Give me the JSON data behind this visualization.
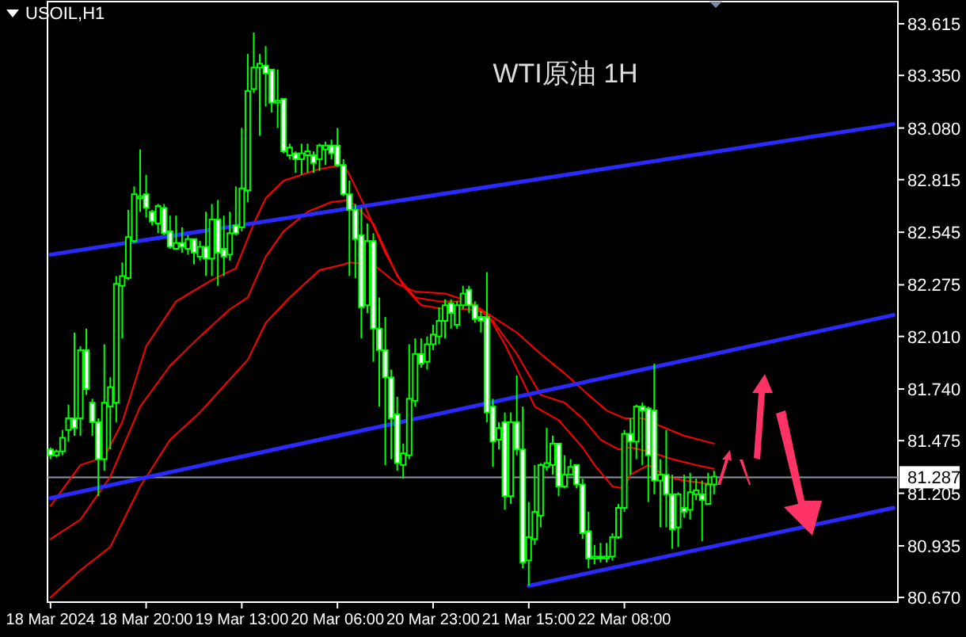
{
  "chart_data": {
    "type": "candlestick",
    "title": "WTI原油 1H",
    "subtitle": "USOIL,H1",
    "color": "#00ff00",
    "categories": [
      "18 Mar 2024",
      null,
      null,
      null,
      null,
      null,
      null,
      null,
      null,
      null,
      null,
      null,
      null,
      null,
      null,
      null,
      "18 Mar 20:00",
      null,
      null,
      null,
      null,
      null,
      null,
      null,
      null,
      null,
      null,
      null,
      null,
      null,
      null,
      null,
      "19 Mar 13:00",
      null,
      null,
      null,
      null,
      null,
      null,
      null,
      null,
      null,
      null,
      null,
      null,
      null,
      null,
      null,
      "20 Mar 06:00",
      null,
      null,
      null,
      null,
      null,
      null,
      null,
      null,
      null,
      null,
      null,
      null,
      null,
      null,
      null,
      "20 Mar 23:00",
      null,
      null,
      null,
      null,
      null,
      null,
      null,
      null,
      null,
      null,
      null,
      null,
      null,
      null,
      null,
      "21 Mar 15:00",
      null,
      null,
      null,
      null,
      null,
      null,
      null,
      null,
      null,
      null,
      null,
      null,
      null,
      null,
      null,
      "22 Mar 08:00",
      null,
      null,
      null,
      null,
      null,
      null,
      null,
      null,
      null,
      null,
      null,
      null,
      null,
      null,
      null,
      null,
      null,
      null,
      null,
      null,
      null,
      null,
      null,
      null,
      null,
      null,
      null,
      null,
      null,
      null,
      null,
      null,
      null,
      null,
      null,
      null,
      null,
      null,
      null,
      null,
      null,
      null,
      null,
      null,
      null
    ],
    "ohlc": [
      [
        81.43,
        81.44,
        81.38,
        81.4
      ],
      [
        81.4,
        81.43,
        81.39,
        81.42
      ],
      [
        81.42,
        81.53,
        81.4,
        81.49
      ],
      [
        81.53,
        81.66,
        81.47,
        81.59
      ],
      [
        81.59,
        82.03,
        81.5,
        81.54
      ],
      [
        81.59,
        81.96,
        81.5,
        81.94
      ],
      [
        81.94,
        82.05,
        81.71,
        81.74
      ],
      [
        81.67,
        81.69,
        81.5,
        81.57
      ],
      [
        81.57,
        81.59,
        81.19,
        81.38
      ],
      [
        81.38,
        81.97,
        81.32,
        81.67
      ],
      [
        81.65,
        81.8,
        81.43,
        81.75
      ],
      [
        81.67,
        82.32,
        81.57,
        82.28
      ],
      [
        82.27,
        82.39,
        82.0,
        82.32
      ],
      [
        82.31,
        82.66,
        82.3,
        82.52
      ],
      [
        82.5,
        82.78,
        82.49,
        82.74
      ],
      [
        82.72,
        82.97,
        82.65,
        82.73
      ],
      [
        82.74,
        82.84,
        82.62,
        82.67
      ],
      [
        82.65,
        82.66,
        82.58,
        82.6
      ],
      [
        82.59,
        82.69,
        82.54,
        82.68
      ],
      [
        82.67,
        82.69,
        82.53,
        82.54
      ],
      [
        82.55,
        82.63,
        82.46,
        82.47
      ],
      [
        82.46,
        82.63,
        82.46,
        82.49
      ],
      [
        82.49,
        82.57,
        82.44,
        82.47
      ],
      [
        82.46,
        82.53,
        82.43,
        82.51
      ],
      [
        82.51,
        82.51,
        82.38,
        82.44
      ],
      [
        82.42,
        82.5,
        82.4,
        82.47
      ],
      [
        82.47,
        82.65,
        82.32,
        82.41
      ],
      [
        82.41,
        82.69,
        82.32,
        82.61
      ],
      [
        82.61,
        82.71,
        82.27,
        82.44
      ],
      [
        82.46,
        82.63,
        82.32,
        82.42
      ],
      [
        82.43,
        82.65,
        82.4,
        82.54
      ],
      [
        82.58,
        82.78,
        82.53,
        82.54
      ],
      [
        82.57,
        83.08,
        82.55,
        82.77
      ],
      [
        82.76,
        83.46,
        82.7,
        83.27
      ],
      [
        83.28,
        83.57,
        83.26,
        83.39
      ],
      [
        83.39,
        83.46,
        83.04,
        83.41
      ],
      [
        83.4,
        83.5,
        83.19,
        83.36
      ],
      [
        83.38,
        83.38,
        83.16,
        83.21
      ],
      [
        83.21,
        83.38,
        83.08,
        83.22
      ],
      [
        83.23,
        83.23,
        82.95,
        82.96
      ],
      [
        82.94,
        83.0,
        82.92,
        82.98
      ],
      [
        82.95,
        82.96,
        82.85,
        82.92
      ],
      [
        82.92,
        83.0,
        82.84,
        82.95
      ],
      [
        82.94,
        83.0,
        82.85,
        82.96
      ],
      [
        82.94,
        82.96,
        82.85,
        82.9
      ],
      [
        82.92,
        83.0,
        82.86,
        82.99
      ],
      [
        82.97,
        83.01,
        82.89,
        82.99
      ],
      [
        82.99,
        83.02,
        82.92,
        82.95
      ],
      [
        82.99,
        83.08,
        82.88,
        82.89
      ],
      [
        82.89,
        82.92,
        82.73,
        82.74
      ],
      [
        82.74,
        82.81,
        82.32,
        82.66
      ],
      [
        82.66,
        82.69,
        82.31,
        82.51
      ],
      [
        82.53,
        82.67,
        82.0,
        82.16
      ],
      [
        82.17,
        82.59,
        82.13,
        82.5
      ],
      [
        82.5,
        82.54,
        81.88,
        82.05
      ],
      [
        82.05,
        82.21,
        81.65,
        81.94
      ],
      [
        81.94,
        82.11,
        81.35,
        81.8
      ],
      [
        81.8,
        81.84,
        81.38,
        81.59
      ],
      [
        81.61,
        81.7,
        81.32,
        81.36
      ],
      [
        81.35,
        81.46,
        81.28,
        81.41
      ],
      [
        81.4,
        81.97,
        81.38,
        81.69
      ],
      [
        81.68,
        82.0,
        81.65,
        81.92
      ],
      [
        81.92,
        82.0,
        81.85,
        81.87
      ],
      [
        81.88,
        82.01,
        81.84,
        81.97
      ],
      [
        81.97,
        82.07,
        81.94,
        82.02
      ],
      [
        82.01,
        82.16,
        81.97,
        82.09
      ],
      [
        82.09,
        82.2,
        82.0,
        82.17
      ],
      [
        82.18,
        82.2,
        82.05,
        82.13
      ],
      [
        82.07,
        82.19,
        82.05,
        82.17
      ],
      [
        82.17,
        82.27,
        82.15,
        82.23
      ],
      [
        82.25,
        82.27,
        82.13,
        82.17
      ],
      [
        82.17,
        82.19,
        82.08,
        82.1
      ],
      [
        82.11,
        82.14,
        82.03,
        82.09
      ],
      [
        82.11,
        82.34,
        81.57,
        81.62
      ],
      [
        81.65,
        81.69,
        81.34,
        81.47
      ],
      [
        81.48,
        81.57,
        81.43,
        81.54
      ],
      [
        81.57,
        81.62,
        81.12,
        81.19
      ],
      [
        81.19,
        81.62,
        81.15,
        81.57
      ],
      [
        81.57,
        81.81,
        81.4,
        81.43
      ],
      [
        81.43,
        81.65,
        80.82,
        80.85
      ],
      [
        80.86,
        81.16,
        80.73,
        80.98
      ],
      [
        80.97,
        81.35,
        80.94,
        81.11
      ],
      [
        81.09,
        81.36,
        81.03,
        81.35
      ],
      [
        81.34,
        81.54,
        81.32,
        81.36
      ],
      [
        81.35,
        81.5,
        81.3,
        81.46
      ],
      [
        81.46,
        81.46,
        81.19,
        81.24
      ],
      [
        81.24,
        81.4,
        81.23,
        81.3
      ],
      [
        81.3,
        81.38,
        81.3,
        81.34
      ],
      [
        81.35,
        81.35,
        81.23,
        81.25
      ],
      [
        81.25,
        81.28,
        80.97,
        81.0
      ],
      [
        81.01,
        81.11,
        80.82,
        80.87
      ],
      [
        80.87,
        80.94,
        80.84,
        80.88
      ],
      [
        80.88,
        80.95,
        80.85,
        80.87
      ],
      [
        80.87,
        80.95,
        80.85,
        80.88
      ],
      [
        80.88,
        81.0,
        80.86,
        80.98
      ],
      [
        80.98,
        81.15,
        80.97,
        81.13
      ],
      [
        81.13,
        81.53,
        81.11,
        81.51
      ],
      [
        81.51,
        81.59,
        81.3,
        81.47
      ],
      [
        81.47,
        81.66,
        81.38,
        81.65
      ],
      [
        81.65,
        81.67,
        81.35,
        81.63
      ],
      [
        81.64,
        81.65,
        81.16,
        81.4
      ],
      [
        81.63,
        81.87,
        81.2,
        81.27
      ],
      [
        81.27,
        81.38,
        81.03,
        81.3
      ],
      [
        81.3,
        81.53,
        81.03,
        81.2
      ],
      [
        81.2,
        81.3,
        80.92,
        81.02
      ],
      [
        81.03,
        81.21,
        80.93,
        81.2
      ],
      [
        81.13,
        81.3,
        81.08,
        81.11
      ],
      [
        81.12,
        81.31,
        81.07,
        81.21
      ],
      [
        81.2,
        81.28,
        81.17,
        81.22
      ],
      [
        81.2,
        81.27,
        80.96,
        81.17
      ],
      [
        81.15,
        81.31,
        81.15,
        81.25
      ],
      [
        81.25,
        81.32,
        81.2,
        81.29
      ],
      null,
      null,
      null,
      null,
      null,
      null,
      null,
      null,
      null,
      null,
      null,
      null,
      null,
      null,
      null,
      null,
      null,
      null,
      null,
      null,
      null,
      null,
      null,
      null,
      null,
      null,
      null,
      null,
      null,
      null
    ],
    "series": [
      {
        "type": "line",
        "color": "#ff0000",
        "values": [
          81.14,
          null,
          null,
          null,
          null,
          81.35,
          null,
          null,
          null,
          81.39,
          null,
          null,
          81.57,
          null,
          null,
          null,
          81.96,
          null,
          null,
          null,
          null,
          82.19,
          null,
          null,
          null,
          null,
          null,
          82.3,
          null,
          null,
          null,
          82.36,
          null,
          null,
          82.59,
          null,
          82.72,
          null,
          null,
          82.81,
          null,
          null,
          null,
          null,
          null,
          82.87,
          null,
          null,
          null,
          82.89,
          82.84,
          null,
          null,
          82.65,
          null,
          null,
          82.44,
          null,
          null,
          82.27,
          null,
          null,
          82.17,
          null,
          null,
          null,
          82.15,
          null,
          null,
          null,
          82.15,
          null,
          null,
          82.13,
          null,
          null,
          81.97,
          null,
          null,
          81.78,
          null,
          81.65,
          null,
          null,
          null,
          81.58,
          null,
          null,
          null,
          81.44,
          null,
          81.35,
          null,
          null,
          81.24,
          null,
          81.23,
          81.3,
          null,
          null,
          81.35,
          null,
          null,
          81.29,
          null,
          null,
          81.27,
          null,
          null,
          null,
          null,
          81.25,
          null,
          null,
          null,
          null,
          null,
          null,
          null,
          null,
          null,
          null,
          null,
          null,
          null,
          null,
          null,
          null,
          null,
          null,
          null,
          null,
          null,
          null,
          null,
          null,
          null,
          null,
          null,
          null,
          null,
          null
        ]
      },
      {
        "type": "line",
        "color": "#ff0000",
        "values": [
          80.97,
          null,
          null,
          null,
          null,
          81.07,
          null,
          null,
          null,
          null,
          81.29,
          null,
          null,
          null,
          null,
          81.65,
          null,
          null,
          null,
          null,
          81.86,
          null,
          null,
          null,
          null,
          82.01,
          null,
          null,
          null,
          null,
          82.15,
          null,
          null,
          82.21,
          null,
          null,
          82.42,
          null,
          null,
          82.55,
          null,
          null,
          null,
          82.65,
          null,
          null,
          null,
          82.7,
          null,
          null,
          82.71,
          null,
          null,
          null,
          82.59,
          null,
          null,
          null,
          82.32,
          null,
          null,
          82.21,
          null,
          null,
          null,
          82.19,
          null,
          null,
          null,
          null,
          82.19,
          null,
          null,
          null,
          82.09,
          null,
          null,
          null,
          81.92,
          null,
          null,
          null,
          81.71,
          null,
          null,
          null,
          81.67,
          null,
          null,
          81.59,
          null,
          null,
          81.48,
          null,
          null,
          81.43,
          null,
          81.44,
          null,
          null,
          81.42,
          null,
          null,
          null,
          81.38,
          null,
          null,
          null,
          81.35,
          null,
          null,
          81.33,
          null,
          null,
          null,
          null,
          null,
          null,
          null,
          null,
          null,
          null,
          null,
          null,
          null,
          null,
          null,
          null,
          null,
          null,
          null,
          null,
          null,
          null,
          null,
          null,
          null,
          null,
          null,
          null,
          null,
          null
        ]
      },
      {
        "type": "line",
        "color": "#ff0000",
        "values": [
          80.67,
          null,
          null,
          null,
          null,
          80.81,
          null,
          null,
          null,
          null,
          80.93,
          null,
          null,
          null,
          null,
          81.24,
          null,
          null,
          null,
          null,
          81.48,
          null,
          null,
          null,
          null,
          81.62,
          null,
          null,
          null,
          null,
          81.79,
          null,
          null,
          81.89,
          null,
          null,
          82.08,
          null,
          null,
          null,
          82.21,
          null,
          null,
          null,
          null,
          82.35,
          null,
          null,
          null,
          82.38,
          82.39,
          null,
          null,
          null,
          82.38,
          null,
          null,
          null,
          82.28,
          null,
          null,
          82.24,
          null,
          null,
          null,
          null,
          82.23,
          null,
          null,
          null,
          82.19,
          null,
          null,
          null,
          82.11,
          null,
          null,
          null,
          82.03,
          null,
          null,
          null,
          81.92,
          null,
          null,
          null,
          81.82,
          null,
          null,
          null,
          81.71,
          null,
          null,
          81.63,
          null,
          null,
          81.59,
          null,
          null,
          81.59,
          null,
          null,
          81.55,
          null,
          null,
          null,
          81.5,
          null,
          null,
          null,
          null,
          81.46,
          null,
          null,
          null,
          null,
          null,
          null,
          null,
          null,
          null,
          null,
          null,
          null,
          null,
          null,
          null,
          null,
          null,
          null,
          null,
          null,
          null,
          null,
          null,
          null,
          null,
          null,
          null,
          null,
          null,
          null
        ]
      },
      {
        "type": "line",
        "color": "#2a2aff",
        "values": [
          82.43,
          null,
          null,
          null,
          null,
          null,
          null,
          null,
          null,
          null,
          null,
          null,
          null,
          null,
          null,
          null,
          null,
          null,
          null,
          null,
          null,
          null,
          null,
          null,
          null,
          null,
          null,
          null,
          null,
          null,
          null,
          null,
          null,
          null,
          null,
          null,
          null,
          null,
          null,
          null,
          null,
          null,
          null,
          null,
          null,
          null,
          null,
          null,
          null,
          null,
          null,
          null,
          null,
          null,
          null,
          null,
          null,
          null,
          null,
          null,
          null,
          null,
          null,
          null,
          null,
          null,
          null,
          null,
          null,
          null,
          null,
          null,
          null,
          null,
          null,
          null,
          null,
          null,
          null,
          null,
          null,
          null,
          null,
          null,
          null,
          null,
          null,
          null,
          null,
          null,
          null,
          null,
          null,
          null,
          null,
          null,
          null,
          null,
          null,
          null,
          null,
          null,
          null,
          null,
          null,
          null,
          null,
          null,
          null,
          null,
          null,
          null,
          null,
          null,
          null,
          null,
          null,
          null,
          null,
          null,
          null,
          null,
          null,
          null,
          null,
          null,
          null,
          null,
          null,
          null,
          null,
          null,
          null,
          null,
          null,
          null,
          null,
          null,
          null,
          null,
          null,
          83.1
        ]
      },
      {
        "type": "line",
        "color": "#2a2aff",
        "values": [
          81.18,
          null,
          null,
          null,
          null,
          null,
          null,
          null,
          null,
          null,
          null,
          null,
          null,
          null,
          null,
          null,
          null,
          null,
          null,
          null,
          null,
          null,
          null,
          null,
          null,
          null,
          null,
          null,
          null,
          null,
          null,
          null,
          null,
          null,
          null,
          null,
          null,
          null,
          null,
          null,
          null,
          null,
          null,
          null,
          null,
          null,
          null,
          null,
          null,
          null,
          null,
          null,
          null,
          null,
          null,
          null,
          null,
          null,
          null,
          null,
          null,
          null,
          null,
          null,
          null,
          null,
          null,
          null,
          null,
          null,
          null,
          null,
          null,
          null,
          null,
          null,
          null,
          null,
          null,
          null,
          null,
          null,
          null,
          null,
          null,
          null,
          null,
          null,
          null,
          null,
          null,
          null,
          null,
          null,
          null,
          null,
          null,
          null,
          null,
          null,
          null,
          null,
          null,
          null,
          null,
          null,
          null,
          null,
          null,
          null,
          null,
          null,
          null,
          null,
          null,
          null,
          null,
          null,
          null,
          null,
          null,
          null,
          null,
          null,
          null,
          null,
          null,
          null,
          null,
          null,
          null,
          null,
          null,
          null,
          null,
          null,
          null,
          null,
          null,
          null,
          null,
          82.12
        ]
      },
      {
        "type": "line",
        "color": "#2a2aff",
        "values": [
          null,
          null,
          null,
          null,
          null,
          null,
          null,
          null,
          null,
          null,
          null,
          null,
          null,
          null,
          null,
          null,
          null,
          null,
          null,
          null,
          null,
          null,
          null,
          null,
          null,
          null,
          null,
          null,
          null,
          null,
          null,
          null,
          null,
          null,
          null,
          null,
          null,
          null,
          null,
          null,
          null,
          null,
          null,
          null,
          null,
          null,
          null,
          null,
          null,
          null,
          null,
          null,
          null,
          null,
          null,
          null,
          null,
          null,
          null,
          null,
          null,
          null,
          null,
          null,
          null,
          null,
          null,
          null,
          null,
          null,
          null,
          null,
          null,
          null,
          null,
          null,
          null,
          null,
          null,
          null,
          80.73,
          null,
          null,
          null,
          null,
          null,
          null,
          null,
          null,
          null,
          null,
          null,
          null,
          null,
          null,
          null,
          null,
          null,
          null,
          null,
          null,
          null,
          null,
          null,
          null,
          null,
          null,
          null,
          null,
          null,
          null,
          null,
          null,
          null,
          null,
          null,
          null,
          null,
          null,
          null,
          null,
          null,
          null,
          null,
          null,
          null,
          null,
          null,
          null,
          null,
          null,
          null,
          null,
          null,
          null,
          null,
          null,
          null,
          null,
          null,
          null,
          81.13
        ]
      }
    ],
    "ylim": [
      80.646,
      83.729
    ],
    "yticks": [
      83.615,
      {
        "value": 83.35,
        "label": "83.350"
      },
      {
        "value": 83.08,
        "label": "83.080"
      },
      82.815,
      82.545,
      82.275,
      {
        "value": 82.01,
        "label": "82.010"
      },
      {
        "value": 81.74,
        "label": "81.740"
      },
      81.475,
      81.205,
      80.935,
      {
        "value": 80.67,
        "label": "80.670"
      }
    ],
    "ref_lines": [
      {
        "axis": "y",
        "value": 81.287,
        "label": "81.287",
        "color": "#8c96a0"
      }
    ]
  }
}
